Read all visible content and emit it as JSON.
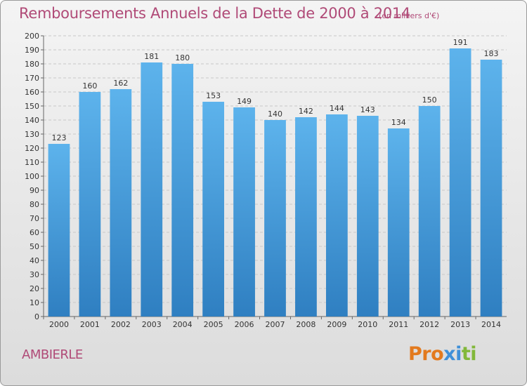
{
  "header": {
    "title": "Remboursements Annuels de la Dette de 2000 à 2014",
    "subtitle": "(en milliers d'€)"
  },
  "footer": {
    "town": "AMBIERLE",
    "logo": [
      "Pro",
      "x",
      "i",
      "ti"
    ]
  },
  "colors": {
    "bar_top": "#5db3ec",
    "bar_bottom": "#2f7fc1",
    "grid": "#c8c8c8",
    "title": "#b04a77"
  },
  "chart_data": {
    "type": "bar",
    "title": "Remboursements Annuels de la Dette de 2000 à 2014",
    "xlabel": "",
    "ylabel": "",
    "ylim": [
      0,
      200
    ],
    "ytick_step": 10,
    "grid": true,
    "categories": [
      "2000",
      "2001",
      "2002",
      "2003",
      "2004",
      "2005",
      "2006",
      "2007",
      "2008",
      "2009",
      "2010",
      "2011",
      "2012",
      "2013",
      "2014"
    ],
    "values": [
      123,
      160,
      162,
      181,
      180,
      153,
      149,
      140,
      142,
      144,
      143,
      134,
      150,
      191,
      183
    ]
  }
}
